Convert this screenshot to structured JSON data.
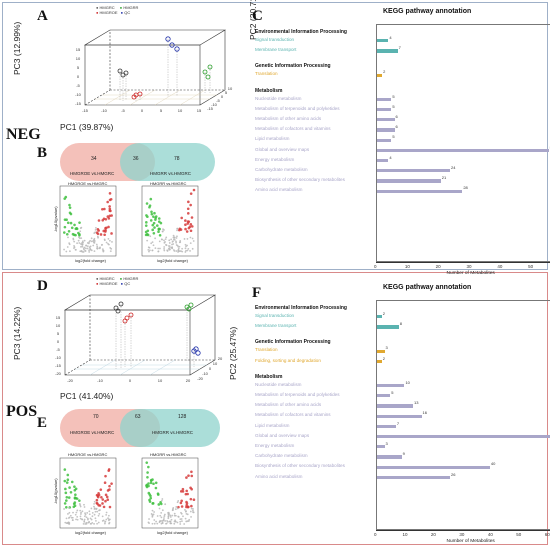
{
  "neg": {
    "mode_label": "NEG",
    "label_pca": "A",
    "label_venn": "B",
    "label_kegg": "C",
    "pca": {
      "xlabel": "PC1 (39.87%)",
      "ylabel": "PC3 (12.99%)",
      "zlabel": "PC2 (20.71%)",
      "legend": [
        "HMGRC",
        "HMGRR",
        "HMGROE",
        "QC"
      ],
      "legend_colors": [
        "#555555",
        "#2a9d2a",
        "#cc2222",
        "#1f2fa8"
      ],
      "xticks": [
        "-15",
        "-10",
        "-5",
        "0",
        "5",
        "10",
        "15"
      ],
      "yticks": [
        "-15",
        "-10",
        "-5",
        "0",
        "5",
        "10",
        "15"
      ],
      "zticks": [
        "-15",
        "-10",
        "-5",
        "0",
        "5",
        "10"
      ]
    },
    "venn": {
      "left_label": "HMGROE vs.HMGRC",
      "right_label": "HMGRR vs.HMGRC",
      "left_only": "34",
      "both": "36",
      "right_only": "78"
    },
    "volcano_titles": [
      "HMGROE vs.HMGRC",
      "HMGRR vs.HMGRC"
    ],
    "volcano_xlabel": "log2(fold change)",
    "volcano_ylabel": "-log10(pvalue)",
    "kegg": {
      "title": "KEGG pathway annotation",
      "xlabel": "Number of Metabolites",
      "xticks": [
        0,
        10,
        20,
        30,
        40,
        50,
        60
      ],
      "xmax": 60,
      "groups": [
        {
          "name": "Environmental Information Processing",
          "color": "#5ab3b0",
          "items": [
            {
              "label": "Signal transduction",
              "value": 4
            },
            {
              "label": "Membrane transport",
              "value": 7
            }
          ]
        },
        {
          "name": "Genetic Information Processing",
          "color": "#e0a830",
          "items": [
            {
              "label": "Translation",
              "value": 2
            }
          ]
        },
        {
          "name": "Metabolism",
          "color": "#a9a6c9",
          "items": [
            {
              "label": "Nucleotide metabolism",
              "value": 5
            },
            {
              "label": "Metabolism of terpenoids and polyketides",
              "value": 5
            },
            {
              "label": "Metabolism of other amino acids",
              "value": 6
            },
            {
              "label": "Metabolism of cofactors and vitamins",
              "value": 6
            },
            {
              "label": "Lipid metabolism",
              "value": 5
            },
            {
              "label": "Global and overview maps",
              "value": 56
            },
            {
              "label": "Energy metabolism",
              "value": 4
            },
            {
              "label": "Carbohydrate metabolism",
              "value": 24
            },
            {
              "label": "Biosynthesis of other secondary metabolites",
              "value": 21
            },
            {
              "label": "Amino acid metabolism",
              "value": 28
            }
          ]
        }
      ]
    }
  },
  "pos": {
    "mode_label": "POS",
    "label_pca": "D",
    "label_venn": "E",
    "label_kegg": "F",
    "pca": {
      "xlabel": "PC1 (41.40%)",
      "ylabel": "PC3 (14.22%)",
      "zlabel": "PC2 (25.47%)",
      "legend": [
        "HMGRC",
        "HMGRR",
        "HMGROE",
        "QC"
      ],
      "legend_colors": [
        "#555555",
        "#2a9d2a",
        "#cc2222",
        "#1f2fa8"
      ],
      "xticks": [
        "-20",
        "-10",
        "0",
        "10",
        "20"
      ],
      "yticks": [
        "-20",
        "-15",
        "-10",
        "-5",
        "0",
        "5",
        "10",
        "15"
      ],
      "zticks": [
        "-20",
        "-10",
        "0",
        "10",
        "20"
      ]
    },
    "venn": {
      "left_label": "HMGROE vs.HMGRC",
      "right_label": "HMGRR vs.HMGRC",
      "left_only": "70",
      "both": "63",
      "right_only": "128"
    },
    "volcano_titles": [
      "HMGROE vs.HMGRC",
      "HMGRR vs.HMGRC"
    ],
    "volcano_xlabel": "log2(fold change)",
    "volcano_ylabel": "-log10(pvalue)",
    "kegg": {
      "title": "KEGG pathway annotation",
      "xlabel": "Number of Metabolites",
      "xticks": [
        0,
        10,
        20,
        30,
        40,
        50,
        60
      ],
      "xmax": 65,
      "groups": [
        {
          "name": "Environmental Information Processing",
          "color": "#5ab3b0",
          "items": [
            {
              "label": "Signal transduction",
              "value": 2
            },
            {
              "label": "Membrane transport",
              "value": 8
            }
          ]
        },
        {
          "name": "Genetic Information Processing",
          "color": "#e0a830",
          "items": [
            {
              "label": "Translation",
              "value": 3
            },
            {
              "label": "Folding, sorting and degradation",
              "value": 2
            }
          ]
        },
        {
          "name": "Metabolism",
          "color": "#a9a6c9",
          "items": [
            {
              "label": "Nucleotide metabolism",
              "value": 10
            },
            {
              "label": "Metabolism of terpenoids and polyketides",
              "value": 5
            },
            {
              "label": "Metabolism of other amino acids",
              "value": 13
            },
            {
              "label": "Metabolism of cofactors and vitamins",
              "value": 16
            },
            {
              "label": "Lipid metabolism",
              "value": 7
            },
            {
              "label": "Global and overview maps",
              "value": 62
            },
            {
              "label": "Energy metabolism",
              "value": 3
            },
            {
              "label": "Carbohydrate metabolism",
              "value": 9
            },
            {
              "label": "Biosynthesis of other secondary metabolites",
              "value": 40
            },
            {
              "label": "Amino acid metabolism",
              "value": 26
            }
          ]
        }
      ]
    }
  },
  "chart_data": [
    {
      "type": "bar",
      "title": "KEGG pathway annotation",
      "xlabel": "Number of Metabolites",
      "xlim": [
        0,
        60
      ],
      "categories": [
        "Signal transduction",
        "Membrane transport",
        "Translation",
        "Nucleotide metabolism",
        "Metabolism of terpenoids and polyketides",
        "Metabolism of other amino acids",
        "Metabolism of cofactors and vitamins",
        "Lipid metabolism",
        "Global and overview maps",
        "Energy metabolism",
        "Carbohydrate metabolism",
        "Biosynthesis of other secondary metabolites",
        "Amino acid metabolism"
      ],
      "values": [
        4,
        7,
        2,
        5,
        5,
        6,
        6,
        5,
        56,
        4,
        24,
        21,
        28
      ]
    },
    {
      "type": "bar",
      "title": "KEGG pathway annotation",
      "xlabel": "Number of Metabolites",
      "xlim": [
        0,
        65
      ],
      "categories": [
        "Signal transduction",
        "Membrane transport",
        "Translation",
        "Folding, sorting and degradation",
        "Nucleotide metabolism",
        "Metabolism of terpenoids and polyketides",
        "Metabolism of other amino acids",
        "Metabolism of cofactors and vitamins",
        "Lipid metabolism",
        "Global and overview maps",
        "Energy metabolism",
        "Carbohydrate metabolism",
        "Biosynthesis of other secondary metabolites",
        "Amino acid metabolism"
      ],
      "values": [
        2,
        8,
        3,
        2,
        10,
        5,
        13,
        16,
        7,
        62,
        3,
        9,
        40,
        26
      ]
    }
  ]
}
